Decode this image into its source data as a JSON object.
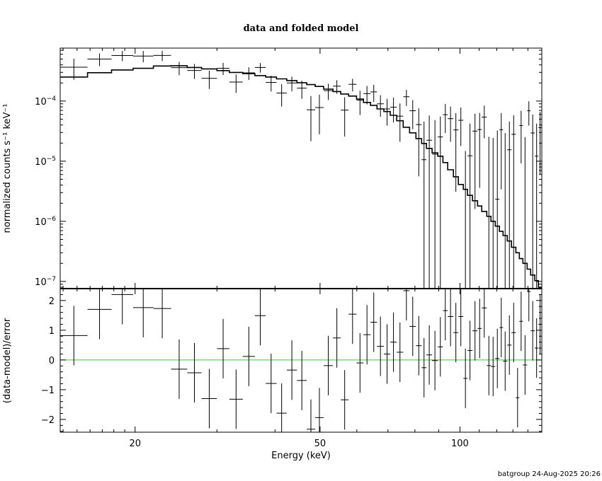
{
  "chart_data": [
    {
      "panel": "top",
      "type": "scatter",
      "title": "data and folded model",
      "ylabel": "normalized counts s⁻¹ keV⁻¹",
      "xlabel": "",
      "xscale": "log",
      "yscale": "log",
      "xlim": [
        13.8,
        150
      ],
      "ylim": [
        7.6e-08,
        0.00076
      ],
      "yticks": [
        {
          "value": 0.0001,
          "base": "10",
          "exp": "−4"
        },
        {
          "value": 1e-05,
          "base": "10",
          "exp": "−5"
        },
        {
          "value": 1e-06,
          "base": "10",
          "exp": "−6"
        },
        {
          "value": 1e-07,
          "base": "10",
          "exp": "−7"
        }
      ],
      "energy_edges": [
        13.8,
        15.8,
        17.8,
        19.8,
        21.9,
        23.9,
        25.9,
        27.8,
        30.0,
        31.9,
        34.1,
        36.2,
        38.2,
        40.3,
        42.4,
        44.6,
        46.8,
        48.8,
        50.9,
        53.3,
        55.4,
        57.6,
        59.9,
        62.0,
        64.2,
        66.3,
        68.6,
        70.8,
        73.1,
        75.5,
        77.9,
        80.4,
        82.7,
        84.7,
        87.1,
        89.6,
        91.9,
        94.1,
        96.8,
        99.2,
        101.7,
        103.8,
        106.4,
        109.1,
        111.4,
        114.2,
        116.6,
        119.1,
        121.6,
        123.8,
        126.4,
        129.1,
        131.9,
        134.2,
        136.6,
        139.5,
        141.9,
        144.9,
        147.5,
        150.0
      ],
      "rate": [
        0.000366,
        0.0005,
        0.000571,
        0.000561,
        0.000573,
        0.000359,
        0.000323,
        0.000239,
        0.000351,
        0.000207,
        0.000294,
        0.000362,
        0.000204,
        0.000136,
        0.0002,
        0.000164,
        7.15e-05,
        7.8e-05,
        0.000149,
        0.000177,
        7.07e-05,
        0.00019,
        0.0001035,
        0.000133,
        0.000142,
        9e-05,
        7.4e-05,
        7.9e-05,
        5.61e-05,
        0.000118,
        6.9e-05,
        4.06e-05,
        1.06e-05,
        2.23e-05,
        1.31e-05,
        2.53e-05,
        5.93e-05,
        5.1e-05,
        3.31e-05,
        4.79e-05,
        -1.52e-05,
        1.23e-05,
        3.16e-05,
        3.36e-05,
        5.4e-05,
        -4.5e-06,
        -5.6e-06,
        2.33e-06,
        3.34e-05,
        -6.2e-07,
        1.55e-05,
        2.8e-05,
        -3.78e-05,
        3.92e-05,
        -4.9e-06,
        6.9e-05,
        2.95e-05,
        1.21e-05,
        3.61e-05
      ],
      "rate_error": [
        0.00014,
        0.00012,
        0.00011,
        0.00012,
        0.00011,
        9e-05,
        9e-05,
        8e-05,
        8e-05,
        7e-05,
        7e-05,
        6.5e-05,
        6e-05,
        5.5e-05,
        5.5e-05,
        5.5e-05,
        5e-05,
        5e-05,
        4.5e-05,
        4.5e-05,
        4.5e-05,
        4.5e-05,
        4.5e-05,
        4.5e-05,
        4.5e-05,
        3.5e-05,
        3.5e-05,
        3.5e-05,
        3.5e-05,
        3.5e-05,
        3.5e-05,
        3.5e-05,
        3.5e-05,
        3.5e-05,
        3.5e-05,
        3e-05,
        3e-05,
        3e-05,
        3e-05,
        3e-05,
        3e-05,
        3e-05,
        3e-05,
        3e-05,
        3e-05,
        3e-05,
        3e-05,
        3e-05,
        3e-05,
        3e-05,
        3e-05,
        3e-05,
        3e-05,
        3e-05,
        3e-05,
        3e-05,
        3e-05,
        3e-05,
        3e-05
      ],
      "model": [
        0.000251,
        0.000296,
        0.000329,
        0.00035,
        0.000383,
        0.000387,
        0.000362,
        0.000343,
        0.000321,
        0.000299,
        0.000286,
        0.000265,
        0.000251,
        0.000234,
        0.000219,
        0.000202,
        0.000188,
        0.000175,
        0.000158,
        0.000144,
        0.000131,
        0.000121,
        0.000108,
        9.5e-05,
        8.5e-05,
        7.4e-05,
        6.7e-05,
        5.8e-05,
        4.7e-05,
        3.67e-05,
        2.96e-05,
        2.38e-05,
        1.97e-05,
        1.63e-05,
        1.38e-05,
        1.21e-05,
        9.5e-06,
        7.2e-06,
        5.5e-06,
        4.1e-06,
        3.4e-06,
        2.7e-06,
        2.2e-06,
        1.8e-06,
        1.46e-06,
        1.21e-06,
        1e-06,
        8.3e-07,
        6.8e-07,
        5.8e-07,
        4.7e-07,
        3.7e-07,
        3e-07,
        2.4e-07,
        2e-07,
        1.6e-07,
        1.28e-07,
        1.03e-07,
        8e-08
      ]
    },
    {
      "panel": "bottom",
      "type": "scatter",
      "xlabel": "Energy (keV)",
      "ylabel": "(data-model)/error",
      "xscale": "log",
      "xlim": [
        13.8,
        150
      ],
      "ylim": [
        -2.43,
        2.4
      ],
      "xticks": [
        {
          "value": 20,
          "label": "20"
        },
        {
          "value": 50,
          "label": "50"
        },
        {
          "value": 100,
          "label": "100"
        }
      ],
      "yticks": [
        {
          "value": 2,
          "label": "2"
        },
        {
          "value": 1,
          "label": "1"
        },
        {
          "value": 0,
          "label": "0"
        },
        {
          "value": -1,
          "label": "−1"
        },
        {
          "value": -2,
          "label": "−2"
        }
      ],
      "reference_line": {
        "value": 0,
        "color": "#33cc33"
      },
      "residual": [
        0.82,
        1.7,
        2.2,
        1.76,
        1.73,
        -0.31,
        -0.43,
        -1.3,
        0.38,
        -1.32,
        0.12,
        1.49,
        -0.79,
        -1.79,
        -0.34,
        -0.69,
        -2.33,
        -1.94,
        -0.19,
        0.74,
        -1.34,
        1.54,
        -0.1,
        0.85,
        1.27,
        0.46,
        0.2,
        0.6,
        0.26,
        2.33,
        1.13,
        0.48,
        -0.26,
        0.17,
        -0.02,
        0.44,
        1.66,
        1.46,
        0.92,
        1.46,
        -0.62,
        0.32,
        0.98,
        1.06,
        1.75,
        -0.19,
        -0.22,
        0.05,
        1.09,
        -0.04,
        0.5,
        0.92,
        -1.27,
        1.3,
        -0.17,
        2.3,
        0.98,
        0.4,
        1.2
      ],
      "residual_error": 1.0
    }
  ],
  "footer": "batgroup 24-Aug-2025 20:26",
  "colors": {
    "data": "#000000",
    "model": "#000000",
    "zero_line": "#33cc33"
  }
}
